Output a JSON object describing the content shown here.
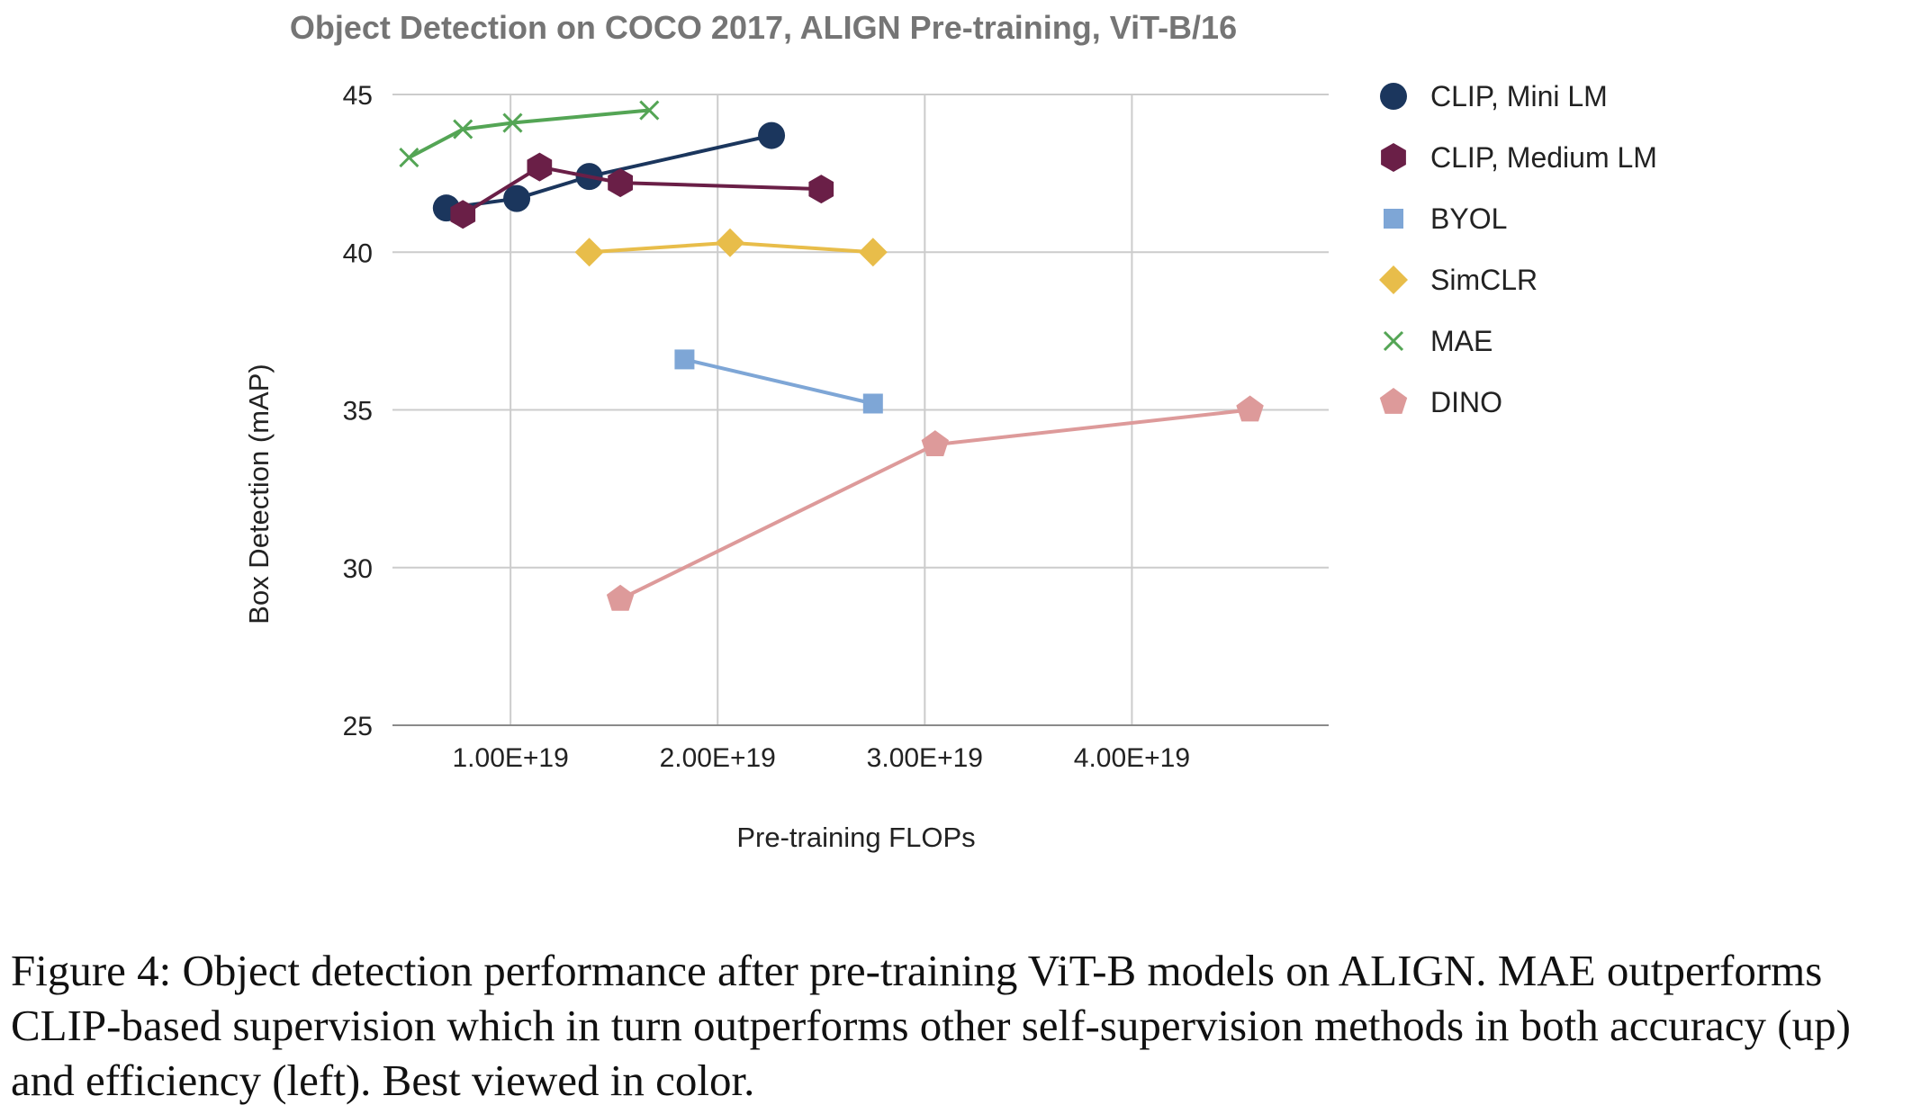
{
  "chart_data": {
    "type": "line",
    "title": "Object Detection on COCO 2017, ALIGN Pre-training, ViT-B/16",
    "xlabel": "Pre-training FLOPs",
    "ylabel": "Box Detection (mAP)",
    "xlim": [
      4.3e+18,
      4.95e+19
    ],
    "ylim": [
      25,
      45
    ],
    "xticks": [
      1e+19,
      2e+19,
      3e+19,
      4e+19
    ],
    "xtick_labels": [
      "1.00E+19",
      "2.00E+19",
      "3.00E+19",
      "4.00E+19"
    ],
    "yticks": [
      25,
      30,
      35,
      40,
      45
    ],
    "ytick_labels": [
      "25",
      "30",
      "35",
      "40",
      "45"
    ],
    "grid": true,
    "legend_position": "right",
    "series": [
      {
        "name": "CLIP, Mini LM",
        "color": "#1b365d",
        "marker": "circle",
        "x": [
          6.9e+18,
          1.03e+19,
          1.38e+19,
          2.26e+19
        ],
        "y": [
          41.4,
          41.7,
          42.4,
          43.7
        ]
      },
      {
        "name": "CLIP, Medium LM",
        "color": "#6a1f47",
        "marker": "hexagon",
        "x": [
          7.7e+18,
          1.14e+19,
          1.53e+19,
          2.5e+19
        ],
        "y": [
          41.2,
          42.7,
          42.2,
          42.0
        ]
      },
      {
        "name": "BYOL",
        "color": "#7ea6d6",
        "marker": "square",
        "x": [
          1.84e+19,
          2.75e+19
        ],
        "y": [
          36.6,
          35.2
        ]
      },
      {
        "name": "SimCLR",
        "color": "#e8bd4a",
        "marker": "diamond",
        "x": [
          1.38e+19,
          2.06e+19,
          2.75e+19
        ],
        "y": [
          40.0,
          40.3,
          40.0
        ]
      },
      {
        "name": "MAE",
        "color": "#54a555",
        "marker": "x",
        "x": [
          5.1e+18,
          7.7e+18,
          1.01e+19,
          1.67e+19
        ],
        "y": [
          43.0,
          43.9,
          44.1,
          44.5
        ]
      },
      {
        "name": "DINO",
        "color": "#dd9a9a",
        "marker": "pentagon",
        "x": [
          1.53e+19,
          3.05e+19,
          4.57e+19
        ],
        "y": [
          29.0,
          33.9,
          35.0
        ]
      }
    ]
  },
  "caption": "Figure 4: Object detection performance after pre-training ViT-B models on ALIGN. MAE outperforms CLIP-based supervision which in turn outperforms other self-supervision methods in both accuracy (up) and efficiency (left). Best viewed in color."
}
